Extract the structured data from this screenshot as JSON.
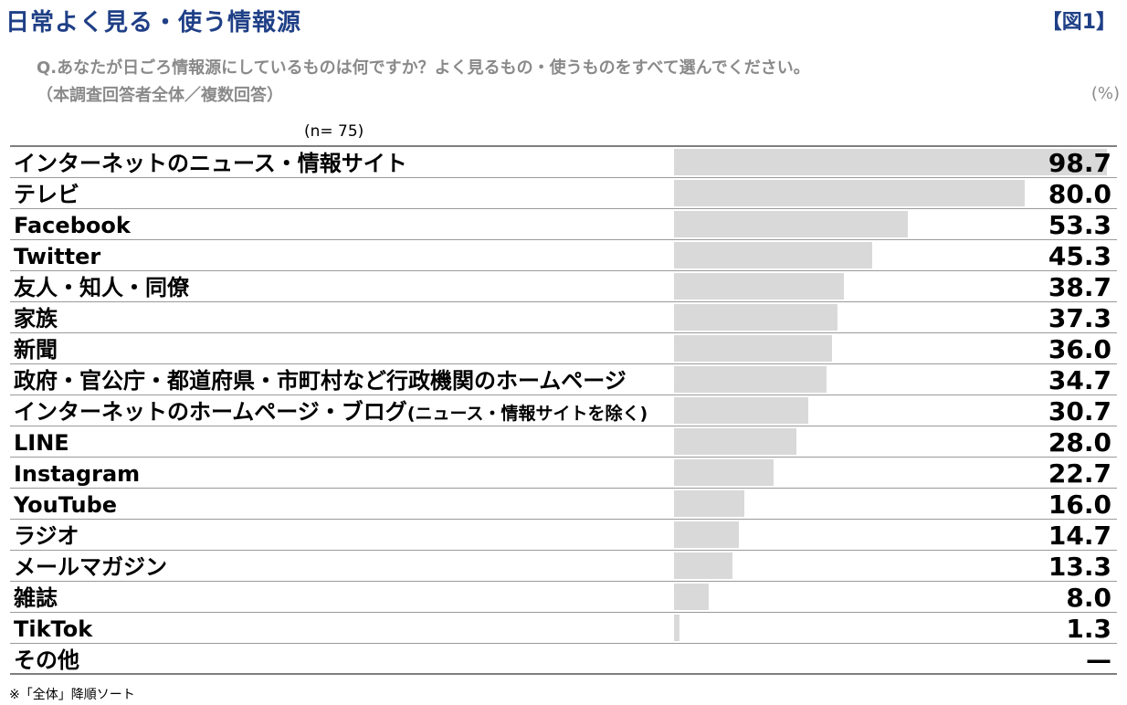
{
  "header": {
    "title": "日常よく見る・使う情報源",
    "figure_label": "【図1】",
    "question": "Q.あなたが日ごろ情報源にしているものは何ですか？よく見るもの・使うものをすべて選んでください。",
    "scope": "（本調査回答者全体／複数回答）",
    "unit": "(%)",
    "sample_size": "(n=  75)"
  },
  "footnote": "※「全体」降順ソート",
  "chart_data": {
    "type": "bar",
    "orientation": "horizontal",
    "xlim": [
      0,
      100
    ],
    "bar_color": "#d9d9d9",
    "categories": [
      "インターネットのニュース・情報サイト",
      "テレビ",
      "Facebook",
      "Twitter",
      "友人・知人・同僚",
      "家族",
      "新聞",
      "政府・官公庁・都道府県・市町村など行政機関のホームページ",
      "インターネットのホームページ・ブログ",
      "LINE",
      "Instagram",
      "YouTube",
      "ラジオ",
      "メールマガジン",
      "雑誌",
      "TikTok",
      "その他"
    ],
    "category_notes": [
      "",
      "",
      "",
      "",
      "",
      "",
      "",
      "",
      "(ニュース・情報サイトを除く)",
      "",
      "",
      "",
      "",
      "",
      "",
      "",
      ""
    ],
    "values": [
      98.7,
      80.0,
      53.3,
      45.3,
      38.7,
      37.3,
      36.0,
      34.7,
      30.7,
      28.0,
      22.7,
      16.0,
      14.7,
      13.3,
      8.0,
      1.3,
      null
    ],
    "value_labels": [
      "98.7",
      "80.0",
      "53.3",
      "45.3",
      "38.7",
      "37.3",
      "36.0",
      "34.7",
      "30.7",
      "28.0",
      "22.7",
      "16.0",
      "14.7",
      "13.3",
      "8.0",
      "1.3",
      "—"
    ]
  }
}
